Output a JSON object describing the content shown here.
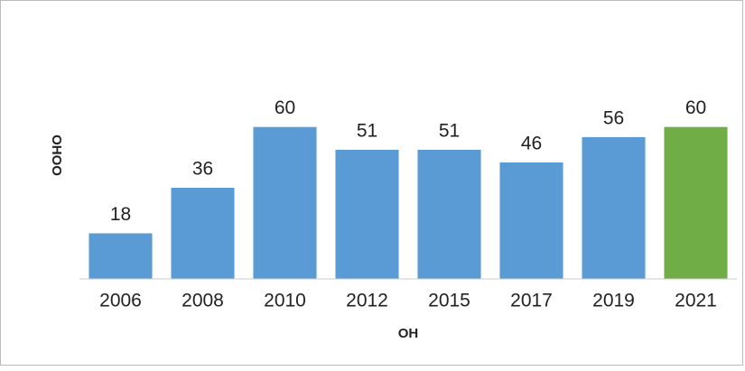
{
  "chart_data": {
    "type": "bar",
    "categories": [
      "2006",
      "2008",
      "2010",
      "2012",
      "2015",
      "2017",
      "2019",
      "2021"
    ],
    "values": [
      18,
      36,
      60,
      51,
      51,
      46,
      56,
      60
    ],
    "colors": [
      "#5b9bd5",
      "#5b9bd5",
      "#5b9bd5",
      "#5b9bd5",
      "#5b9bd5",
      "#5b9bd5",
      "#5b9bd5",
      "#70ad47"
    ],
    "x_label": "OH",
    "y_label": "OHOO",
    "ylim": [
      0,
      72
    ],
    "grid": false
  }
}
